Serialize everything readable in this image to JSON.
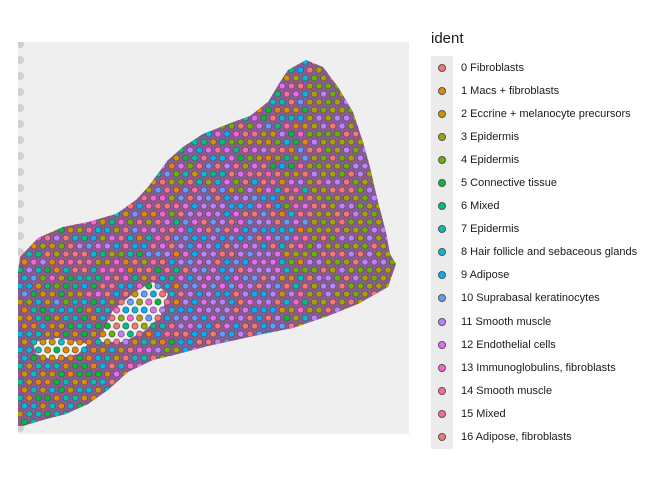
{
  "legend": {
    "title": "ident",
    "items": [
      {
        "label": "0 Fibroblasts",
        "color": "#F8766D"
      },
      {
        "label": "1 Macs + fibroblasts",
        "color": "#E58700"
      },
      {
        "label": "2 Eccrine + melanocyte precursors",
        "color": "#C99800"
      },
      {
        "label": "3 Epidermis",
        "color": "#A3A500"
      },
      {
        "label": "4 Epidermis",
        "color": "#6BB100"
      },
      {
        "label": "5 Connective tissue",
        "color": "#00BA38"
      },
      {
        "label": "6 Mixed",
        "color": "#00BF7D"
      },
      {
        "label": "7 Epidermis",
        "color": "#00C0AF"
      },
      {
        "label": "8 Hair follicle and sebaceous glands",
        "color": "#00BCD8"
      },
      {
        "label": "9 Adipose",
        "color": "#00B0F6"
      },
      {
        "label": "10 Suprabasal keratinocytes",
        "color": "#619CFF"
      },
      {
        "label": "11 Smooth muscle",
        "color": "#B983FF"
      },
      {
        "label": "12 Endothelial cells",
        "color": "#E76BF3"
      },
      {
        "label": "13 Immunoglobulins, fibroblasts",
        "color": "#FD61D1"
      },
      {
        "label": "14 Smooth muscle",
        "color": "#FF67A4"
      },
      {
        "label": "15 Mixed",
        "color": "#FF6C91"
      },
      {
        "label": "16 Adipose, fibroblasts",
        "color": "#F8766D"
      }
    ]
  },
  "image": {
    "tissue_color": "#7b3f86",
    "background_color": "#efefef"
  }
}
